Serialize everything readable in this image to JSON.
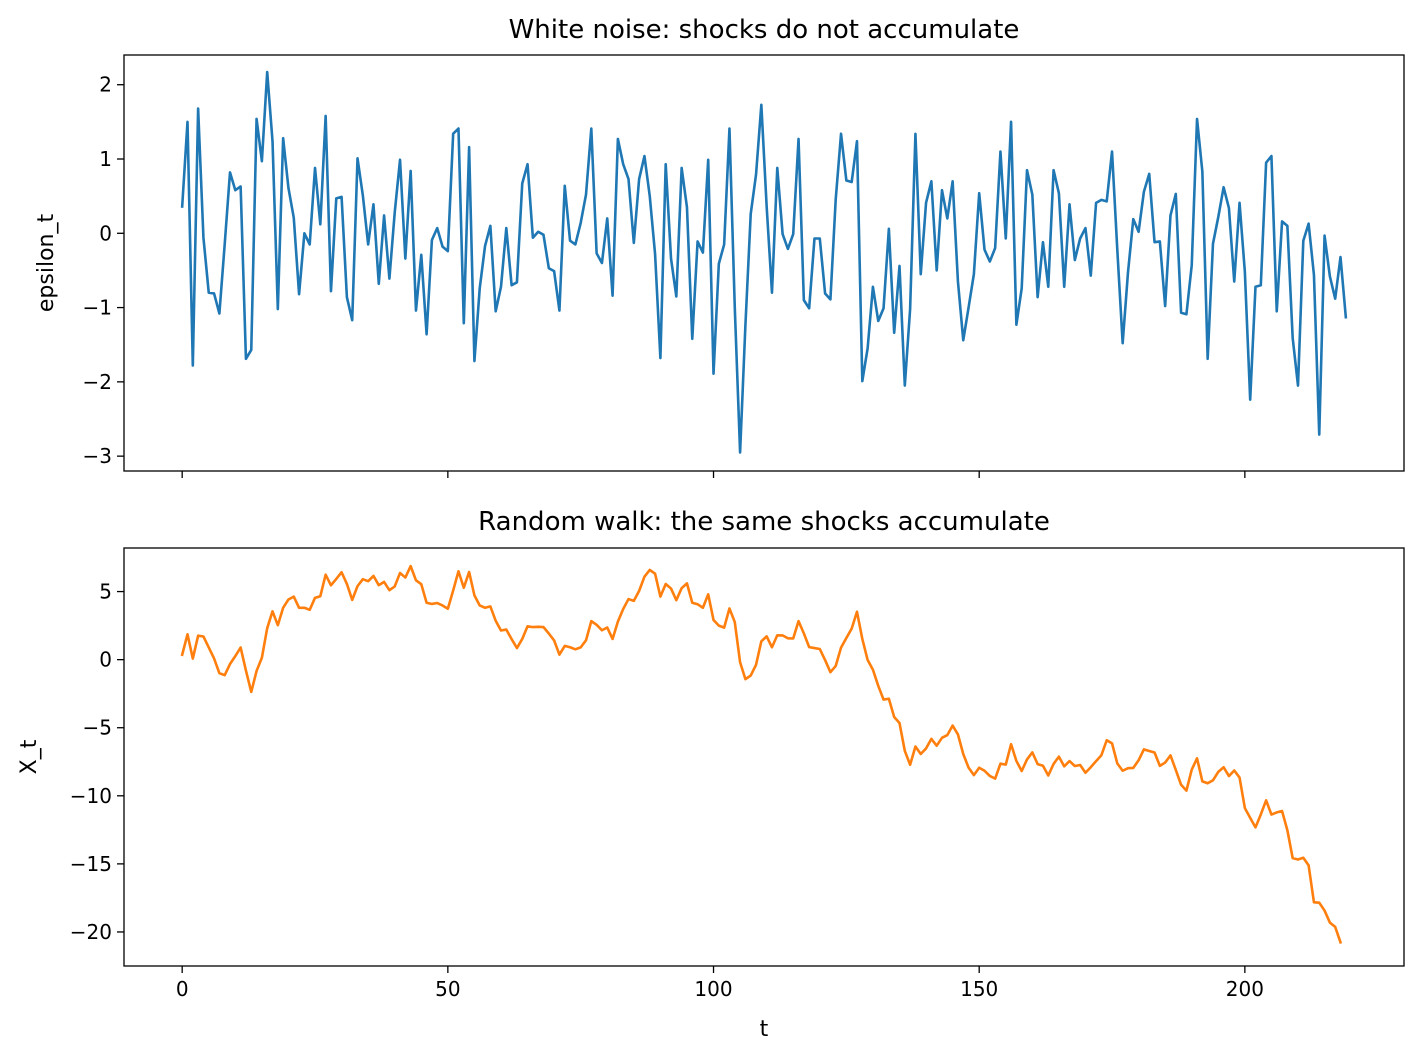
{
  "chart_data": [
    {
      "type": "line",
      "title": "White noise: shocks do not accumulate",
      "xlabel": "",
      "ylabel": "epsilon_t",
      "xlim": [
        -10.95,
        229.95
      ],
      "ylim": [
        -3.2,
        2.4
      ],
      "xticks": [
        0,
        50,
        100,
        150,
        200
      ],
      "xtick_labels": [
        "",
        "",
        "",
        "",
        ""
      ],
      "yticks": [
        2,
        1,
        0,
        -1,
        -2,
        -3
      ],
      "ytick_labels": [
        "2",
        "1",
        "0",
        "−1",
        "−2",
        "−3"
      ],
      "grid": false,
      "color": "#1f77b4",
      "x_start": 0,
      "x_step": 1,
      "values": [
        0.36,
        1.5,
        -1.78,
        1.68,
        -0.06,
        -0.8,
        -0.81,
        -1.08,
        -0.15,
        0.82,
        0.58,
        0.63,
        -1.69,
        -1.57,
        1.54,
        0.97,
        2.17,
        1.24,
        -1.02,
        1.28,
        0.61,
        0.21,
        -0.82,
        0.0,
        -0.15,
        0.88,
        0.12,
        1.58,
        -0.78,
        0.47,
        0.49,
        -0.86,
        -1.17,
        1.01,
        0.51,
        -0.15,
        0.39,
        -0.68,
        0.24,
        -0.61,
        0.28,
        0.99,
        -0.34,
        0.84,
        -1.04,
        -0.29,
        -1.36,
        -0.09,
        0.07,
        -0.18,
        -0.24,
        1.34,
        1.41,
        -1.21,
        1.16,
        -1.72,
        -0.74,
        -0.17,
        0.1,
        -1.05,
        -0.72,
        0.07,
        -0.7,
        -0.66,
        0.67,
        0.93,
        -0.06,
        0.02,
        -0.02,
        -0.47,
        -0.51,
        -1.04,
        0.64,
        -0.1,
        -0.15,
        0.14,
        0.52,
        1.41,
        -0.27,
        -0.4,
        0.2,
        -0.84,
        1.27,
        0.93,
        0.73,
        -0.13,
        0.73,
        1.04,
        0.5,
        -0.28,
        -1.68,
        0.93,
        -0.34,
        -0.85,
        0.88,
        0.35,
        -1.42,
        -0.11,
        -0.26,
        0.99,
        -1.89,
        -0.41,
        -0.15,
        1.41,
        -1.0,
        -2.95,
        -1.24,
        0.26,
        0.79,
        1.73,
        0.36,
        -0.8,
        0.88,
        -0.01,
        -0.21,
        -0.01,
        1.27,
        -0.9,
        -1.01,
        -0.07,
        -0.07,
        -0.81,
        -0.89,
        0.46,
        1.34,
        0.71,
        0.69,
        1.24,
        -1.99,
        -1.55,
        -0.72,
        -1.18,
        -1.01,
        0.06,
        -1.34,
        -0.44,
        -2.05,
        -1.02,
        1.34,
        -0.55,
        0.41,
        0.7,
        -0.5,
        0.58,
        0.2,
        0.7,
        -0.65,
        -1.44,
        -1.0,
        -0.55,
        0.54,
        -0.22,
        -0.38,
        -0.2,
        1.1,
        -0.07,
        1.5,
        -1.23,
        -0.74,
        0.85,
        0.52,
        -0.86,
        -0.12,
        -0.72,
        0.85,
        0.54,
        -0.72,
        0.39,
        -0.36,
        -0.07,
        0.07,
        -0.57,
        0.41,
        0.45,
        0.43,
        1.1,
        -0.23,
        -1.48,
        -0.53,
        0.19,
        0.02,
        0.56,
        0.8,
        -0.12,
        -0.11,
        -0.98,
        0.24,
        0.53,
        -1.07,
        -1.09,
        -0.43,
        1.54,
        0.83,
        -1.69,
        -0.14,
        0.22,
        0.62,
        0.34,
        -0.65,
        0.41,
        -0.52,
        -2.24,
        -0.72,
        -0.7,
        0.95,
        1.04,
        -1.05,
        0.16,
        0.1,
        -1.41,
        -2.05,
        -0.1,
        0.13,
        -0.56,
        -2.71,
        -0.03,
        -0.58,
        -0.88,
        -0.32,
        -1.13
      ]
    },
    {
      "type": "line",
      "title": "Random walk: the same shocks accumulate",
      "xlabel": "t",
      "ylabel": "X_t",
      "xlim": [
        -10.95,
        229.95
      ],
      "ylim": [
        -22.5,
        8.2
      ],
      "xticks": [
        0,
        50,
        100,
        150,
        200
      ],
      "xtick_labels": [
        "0",
        "50",
        "100",
        "150",
        "200"
      ],
      "yticks": [
        5,
        0,
        -5,
        -10,
        -15,
        -20
      ],
      "ytick_labels": [
        "5",
        "0",
        "−5",
        "−10",
        "−15",
        "−20"
      ],
      "grid": false,
      "color": "#ff7f0e",
      "x_start": 0,
      "x_step": 1,
      "values": [
        0.36,
        1.86,
        0.08,
        1.76,
        1.7,
        0.9,
        0.09,
        -0.99,
        -1.14,
        -0.32,
        0.26,
        0.89,
        -0.8,
        -2.37,
        -0.83,
        0.14,
        2.31,
        3.55,
        2.53,
        3.81,
        4.42,
        4.63,
        3.81,
        3.81,
        3.66,
        4.54,
        4.66,
        6.24,
        5.46,
        5.93,
        6.42,
        5.56,
        4.39,
        5.4,
        5.91,
        5.76,
        6.15,
        5.47,
        5.71,
        5.1,
        5.38,
        6.37,
        6.03,
        6.87,
        5.83,
        5.54,
        4.18,
        4.09,
        4.16,
        3.98,
        3.74,
        5.08,
        6.49,
        5.28,
        6.44,
        4.72,
        3.98,
        3.81,
        3.91,
        2.86,
        2.14,
        2.21,
        1.51,
        0.85,
        1.52,
        2.45,
        2.39,
        2.41,
        2.39,
        1.92,
        1.41,
        0.37,
        1.01,
        0.91,
        0.76,
        0.9,
        1.42,
        2.83,
        2.56,
        2.16,
        2.36,
        1.52,
        2.79,
        3.72,
        4.45,
        4.32,
        5.05,
        6.09,
        6.59,
        6.31,
        4.63,
        5.56,
        5.22,
        4.37,
        5.25,
        5.6,
        4.18,
        4.07,
        3.81,
        4.8,
        2.91,
        2.5,
        2.35,
        3.76,
        2.76,
        -0.19,
        -1.43,
        -1.17,
        -0.38,
        1.35,
        1.71,
        0.91,
        1.79,
        1.78,
        1.57,
        1.56,
        2.83,
        1.93,
        0.92,
        0.85,
        0.78,
        -0.03,
        -0.92,
        -0.46,
        0.88,
        1.59,
        2.28,
        3.52,
        1.53,
        -0.02,
        -0.74,
        -1.92,
        -2.93,
        -2.87,
        -4.21,
        -4.65,
        -6.7,
        -7.72,
        -6.38,
        -6.93,
        -6.52,
        -5.82,
        -6.32,
        -5.74,
        -5.54,
        -4.84,
        -5.49,
        -6.93,
        -7.93,
        -8.48,
        -7.94,
        -8.16,
        -8.54,
        -8.74,
        -7.64,
        -7.71,
        -6.21,
        -7.44,
        -8.18,
        -7.33,
        -6.81,
        -7.67,
        -7.79,
        -8.51,
        -7.66,
        -7.12,
        -7.84,
        -7.45,
        -7.81,
        -7.74,
        -8.31,
        -7.9,
        -7.45,
        -7.02,
        -5.92,
        -6.15,
        -7.63,
        -8.16,
        -7.97,
        -7.95,
        -7.39,
        -6.59,
        -6.71,
        -6.82,
        -7.8,
        -7.56,
        -7.03,
        -8.1,
        -9.19,
        -9.62,
        -8.08,
        -7.25,
        -8.94,
        -9.08,
        -8.86,
        -8.24,
        -7.9,
        -8.55,
        -8.14,
        -8.66,
        -10.9,
        -11.62,
        -12.32,
        -11.37,
        -10.33,
        -11.38,
        -11.22,
        -11.12,
        -12.53,
        -14.58,
        -14.68,
        -14.55,
        -15.11,
        -17.82,
        -17.85,
        -18.43,
        -19.31,
        -19.63,
        -20.76
      ]
    }
  ]
}
